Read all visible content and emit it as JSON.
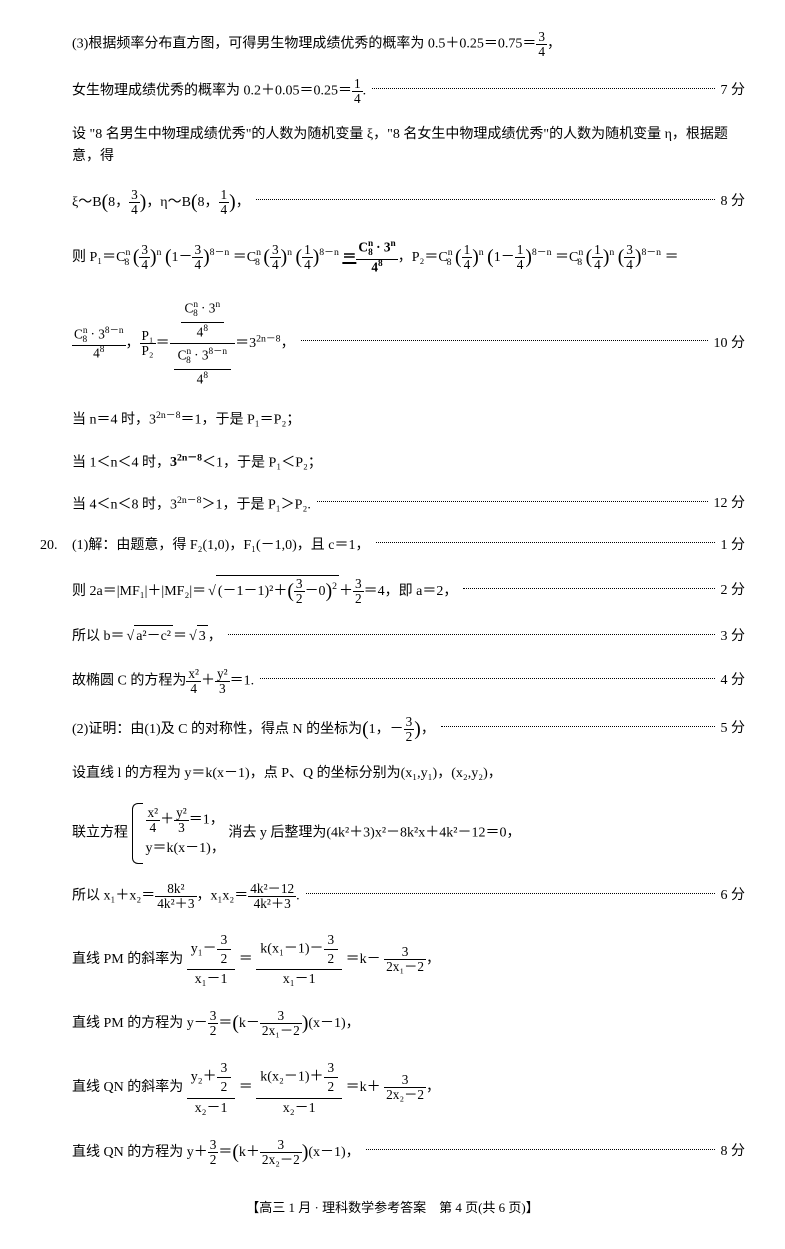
{
  "q19": {
    "p3_intro": "(3)根据频率分布直方图，可得男生物理成绩优秀的概率为 0.5＋0.25＝0.75＝",
    "female_line": "女生物理成绩优秀的概率为 0.2＋0.05＝0.25＝",
    "score7": "7 分",
    "set_line": "设 \"8 名男生中物理成绩优秀\"的人数为随机变量 ξ，\"8 名女生中物理成绩优秀\"的人数为随机变量 η，根据题意，得",
    "dist_prefix": "ξ～B",
    "dist_mid": "，η～B",
    "score8": "8 分",
    "then_P": "则 P₁＝C",
    "p_eq_end": "＝",
    "ratio_eq": "＝3",
    "score10": "10 分",
    "case_n4": "当 n＝4 时，3",
    "case_n4_tail": "＝1，于是 P₁＝P₂；",
    "case_1n4": "当 1＜n＜4 时，",
    "case_1n4_tail": "＜1，于是 P₁＜P₂；",
    "case_4n8": "当 4＜n＜8 时，3",
    "case_4n8_tail": "＞1，于是 P₁＞P₂.",
    "score12": "12 分"
  },
  "q20": {
    "num": "20.",
    "p1": "(1)解：由题意，得 F₂(1,0)，F₁(－1,0)，且 c＝1，",
    "score1": "1 分",
    "then_2a": "则 2a＝|MF₁|＋|MF₂|＝",
    "plus32": "＋",
    "eq4": "＝4，即 a＝2，",
    "score2": "2 分",
    "so_b": "所以 b＝",
    "eq_sqrt3": "＝",
    "score3": "3 分",
    "ellipse_prefix": "故椭圆 C 的方程为",
    "ellipse_eq1": "＝1.",
    "score4": "4 分",
    "p2_prefix": "(2)证明：由(1)及 C 的对称性，得点 N 的坐标为",
    "score5": "5 分",
    "set_l": "设直线 l 的方程为 y＝k(x－1)，点 P、Q 的坐标分别为(x₁,y₁)，(x₂,y₂)，",
    "union_prefix": "联立方程",
    "brace_top_tail": "＝1，",
    "brace_bot": "y＝k(x－1)，",
    "elim_text": "消去 y 后整理为(4k²＋3)x²－8k²x＋4k²－12＝0，",
    "so_x": "所以 x₁＋x₂＝",
    "x1x2": "，x₁x₂＝",
    "score6": "6 分",
    "pm_slope_prefix": "直线 PM 的斜率为",
    "eq": "＝",
    "km": "＝k－",
    "pm_eq_prefix": "直线 PM 的方程为 y－",
    "pm_eq_mid": "＝",
    "pm_eq_tail": "(x－1)，",
    "qn_slope_prefix": "直线 QN 的斜率为",
    "kp": "＝k＋",
    "qn_eq_prefix": "直线 QN 的方程为 y＋",
    "qn_eq_tail": "(x－1)，",
    "score8": "8 分"
  },
  "footer": "【高三 1 月 · 理科数学参考答案　第 4 页(共 6 页)】",
  "frac": {
    "3_4": {
      "n": "3",
      "d": "4"
    },
    "1_4": {
      "n": "1",
      "d": "4"
    },
    "3_2": {
      "n": "3",
      "d": "2"
    },
    "x24": {
      "n": "x²",
      "d": "4"
    },
    "y23": {
      "n": "y²",
      "d": "3"
    },
    "8k2": {
      "n": "8k²",
      "d": "4k²＋3"
    },
    "4k212": {
      "n": "4k²－12",
      "d": "4k²＋3"
    },
    "P1P2": {
      "n": "P₁",
      "d": "P₂"
    }
  }
}
